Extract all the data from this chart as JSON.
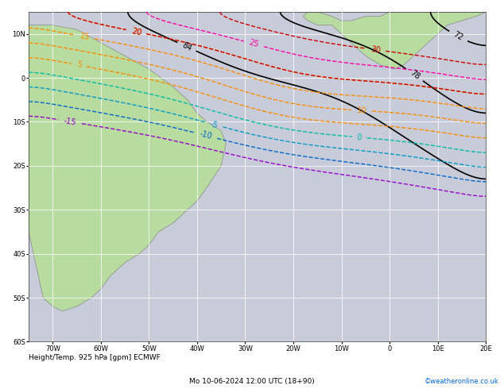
{
  "title_left": "Height/Temp. 925 hPa [gpm] ECMWF",
  "title_right": "Mo 10-06-2024 12:00 UTC (18+90)",
  "copyright": "©weatheronline.co.uk",
  "background_ocean": "#d0d8e8",
  "background_land_south_america": "#c8e6b0",
  "background_land_africa": "#c8e6b0",
  "grid_color": "#ffffff",
  "contour_color_black": "#000000",
  "contour_color_orange": "#ff8c00",
  "contour_color_red": "#cc0000",
  "contour_color_pink": "#ff00aa",
  "contour_color_cyan": "#00cccc",
  "contour_color_purple": "#9900cc",
  "contour_color_blue": "#0066cc",
  "figsize": [
    6.34,
    4.9
  ],
  "dpi": 100
}
